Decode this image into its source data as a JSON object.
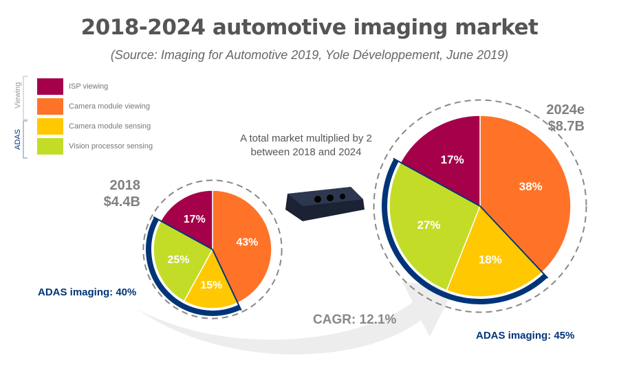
{
  "title": "2018-2024 automotive imaging market",
  "subtitle": "(Source: Imaging for Automotive 2019, Yole Développement, June 2019)",
  "legend": {
    "groups": [
      "Viewing",
      "ADAS"
    ],
    "items": [
      {
        "label": "ISP viewing",
        "color": "#A5004A"
      },
      {
        "label": "Camera module viewing",
        "color": "#FF7328"
      },
      {
        "label": "Camera module sensing",
        "color": "#FFC800"
      },
      {
        "label": "Vision processor sensing",
        "color": "#C3DC28"
      }
    ]
  },
  "note": "A total market multiplied by 2 between 2018 and 2024",
  "cagr": "CAGR: 12.1%",
  "chart_data": [
    {
      "type": "pie",
      "year": "2018",
      "total": "$4.4B",
      "adas_label": "ADAS imaging: 40%",
      "categories": [
        "Camera module viewing",
        "Camera module sensing",
        "Vision processor sensing",
        "ISP viewing"
      ],
      "values": [
        43,
        15,
        25,
        17
      ],
      "data_labels": [
        "43%",
        "15%",
        "25%",
        "17%"
      ]
    },
    {
      "type": "pie",
      "year": "2024e",
      "total": "$8.7B",
      "adas_label": "ADAS imaging: 45%",
      "categories": [
        "Camera module viewing",
        "Camera module sensing",
        "Vision processor sensing",
        "ISP viewing"
      ],
      "values": [
        38,
        18,
        27,
        17
      ],
      "data_labels": [
        "38%",
        "18%",
        "27%",
        "17%"
      ]
    }
  ],
  "colors": {
    "adas_arc": "#003478",
    "dashed": "#888888",
    "arrow": "#EDEDED"
  }
}
